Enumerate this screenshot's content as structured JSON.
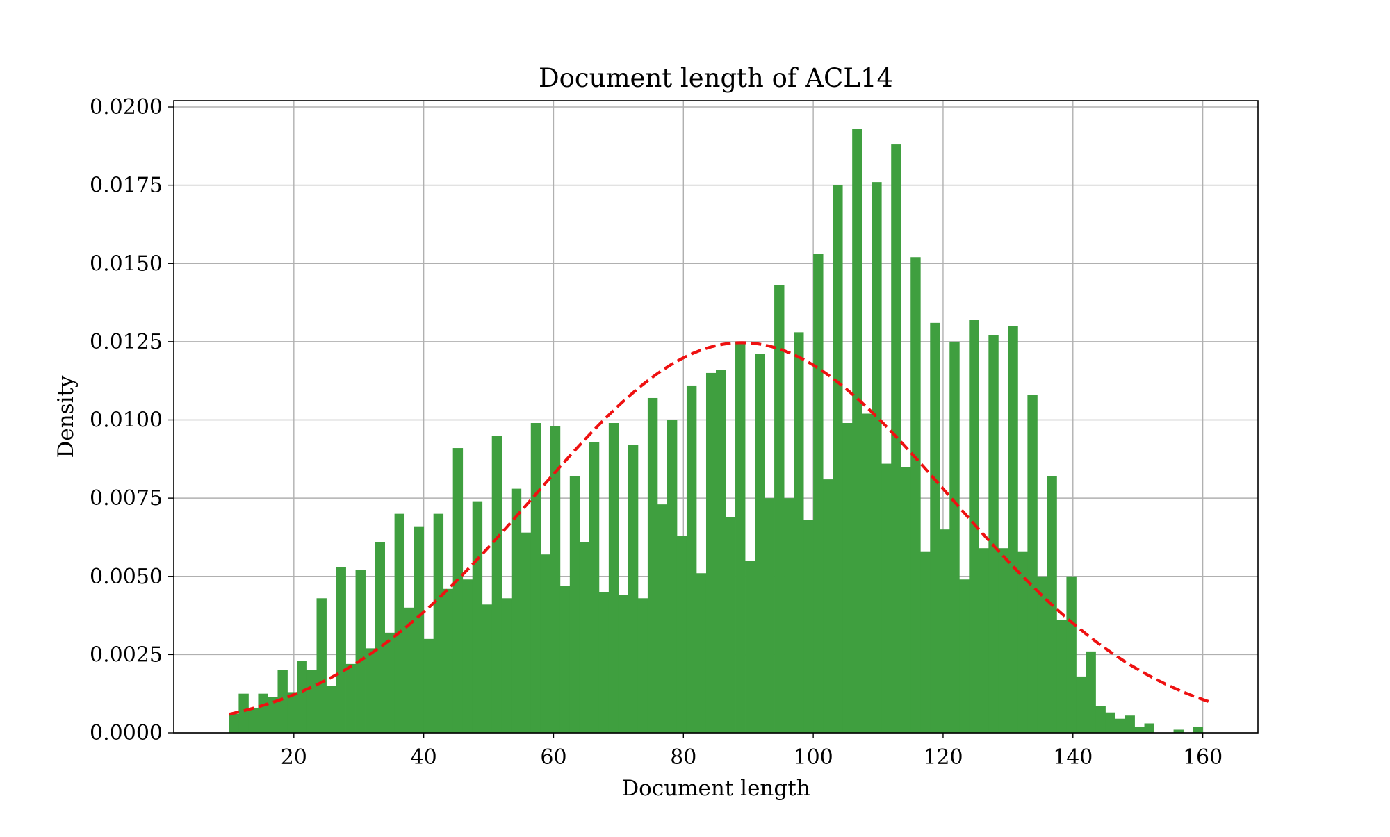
{
  "chart_data": {
    "type": "bar",
    "subtype": "histogram with fitted normal curve",
    "title": "Document length of ACL14",
    "xlabel": "Document length",
    "ylabel": "Density",
    "xlim": [
      1.5,
      168.5
    ],
    "ylim": [
      0,
      0.0202
    ],
    "xticks": [
      20,
      40,
      60,
      80,
      100,
      120,
      140,
      160
    ],
    "xtick_labels": [
      "20",
      "40",
      "60",
      "80",
      "100",
      "120",
      "140",
      "160"
    ],
    "yticks": [
      0,
      0.0025,
      0.005,
      0.0075,
      0.01,
      0.0125,
      0.015,
      0.0175,
      0.02
    ],
    "ytick_labels": [
      "0.0000",
      "0.0025",
      "0.0050",
      "0.0075",
      "0.0100",
      "0.0125",
      "0.0150",
      "0.0175",
      "0.0200"
    ],
    "grid": true,
    "bin_start": 10,
    "bin_width": 1.5,
    "values": [
      0.0006,
      0.00125,
      0.0008,
      0.00125,
      0.00115,
      0.002,
      0.0013,
      0.0023,
      0.002,
      0.0043,
      0.0015,
      0.0053,
      0.0022,
      0.0052,
      0.0027,
      0.0061,
      0.0032,
      0.007,
      0.004,
      0.0066,
      0.003,
      0.007,
      0.0046,
      0.0091,
      0.0049,
      0.0074,
      0.0041,
      0.0095,
      0.0043,
      0.0078,
      0.0064,
      0.0099,
      0.0057,
      0.0098,
      0.0047,
      0.0082,
      0.0061,
      0.0093,
      0.0045,
      0.0099,
      0.0044,
      0.0092,
      0.0043,
      0.0107,
      0.0073,
      0.01,
      0.0063,
      0.0111,
      0.0051,
      0.0115,
      0.0116,
      0.0069,
      0.0125,
      0.0055,
      0.0121,
      0.0075,
      0.0143,
      0.0075,
      0.0128,
      0.0068,
      0.0153,
      0.0081,
      0.0175,
      0.0099,
      0.0193,
      0.0102,
      0.0176,
      0.0086,
      0.0188,
      0.0085,
      0.0152,
      0.0058,
      0.0131,
      0.0065,
      0.0125,
      0.0049,
      0.0132,
      0.0059,
      0.0127,
      0.0059,
      0.013,
      0.0058,
      0.0108,
      0.005,
      0.0082,
      0.0036,
      0.005,
      0.0018,
      0.0026,
      0.00085,
      0.00065,
      0.00045,
      0.00055,
      0.0002,
      0.0003,
      0.0,
      0.0,
      0.0001,
      0.0,
      0.0002
    ],
    "series": [
      {
        "kind": "histogram",
        "color": "#3f9f3f"
      },
      {
        "kind": "fitted normal curve",
        "mean": 89,
        "std": 32,
        "x_range": [
          10,
          161
        ],
        "color": "#ee1111",
        "style": "dashed"
      }
    ]
  }
}
